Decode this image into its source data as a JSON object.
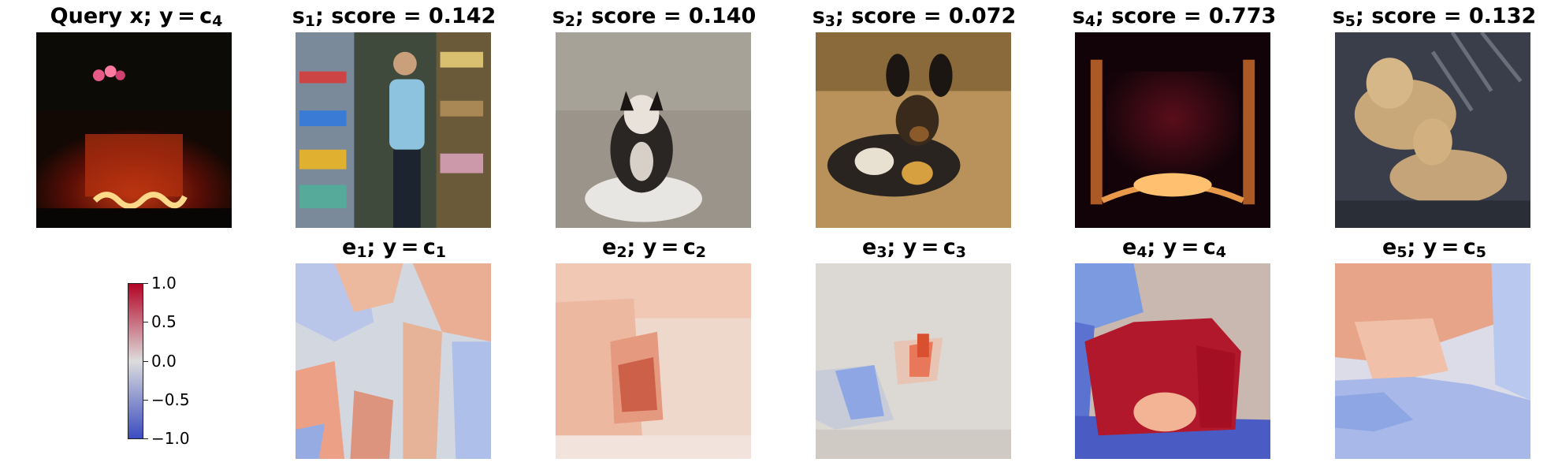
{
  "figure": {
    "query": {
      "prefix": "Query x; y = c",
      "sub": "4"
    },
    "samples": [
      {
        "sym": "s",
        "sub": "1",
        "score_text": "; score = 0.142",
        "score": 0.142
      },
      {
        "sym": "s",
        "sub": "2",
        "score_text": "; score = 0.140",
        "score": 0.14
      },
      {
        "sym": "s",
        "sub": "3",
        "score_text": "; score = 0.072",
        "score": 0.072
      },
      {
        "sym": "s",
        "sub": "4",
        "score_text": "; score = 0.773",
        "score": 0.773
      },
      {
        "sym": "s",
        "sub": "5",
        "score_text": "; score = 0.132",
        "score": 0.132
      }
    ],
    "explanations": [
      {
        "sym": "e",
        "sub": "1",
        "mid": "; y = c",
        "csub": "1"
      },
      {
        "sym": "e",
        "sub": "2",
        "mid": "; y = c",
        "csub": "2"
      },
      {
        "sym": "e",
        "sub": "3",
        "mid": "; y = c",
        "csub": "3"
      },
      {
        "sym": "e",
        "sub": "4",
        "mid": "; y = c",
        "csub": "4"
      },
      {
        "sym": "e",
        "sub": "5",
        "mid": "; y = c",
        "csub": "5"
      }
    ],
    "colorbar": {
      "ticks": [
        "1.0",
        "0.5",
        "0.0",
        "−0.5",
        "−1.0"
      ],
      "range": [
        -1.0,
        1.0
      ],
      "colormap": "coolwarm",
      "colors": {
        "high": "#b40426",
        "mid": "#dddddd",
        "low": "#3b4cc0"
      }
    }
  }
}
